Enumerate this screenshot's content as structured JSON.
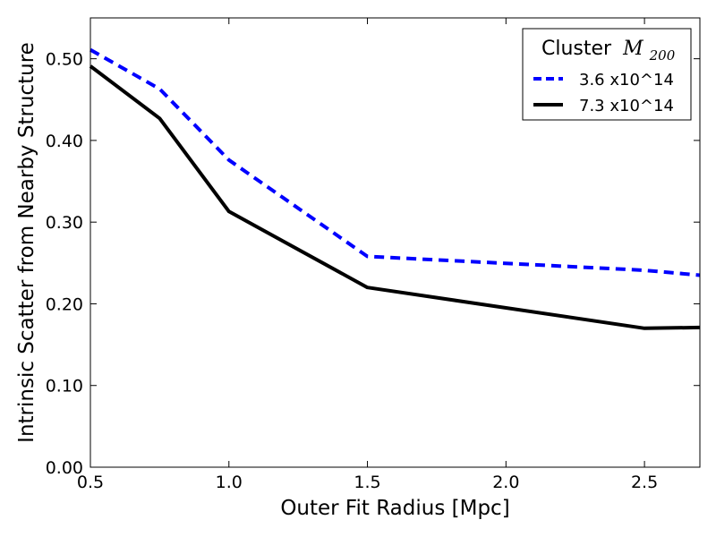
{
  "chart_data": {
    "type": "line",
    "xlabel": "Outer Fit Radius [Mpc]",
    "ylabel": "Intrinsic Scatter from Nearby Structure",
    "xlim": [
      0.5,
      2.7
    ],
    "ylim": [
      0.0,
      0.55
    ],
    "x_ticks": [
      0.5,
      1.0,
      1.5,
      2.0,
      2.5
    ],
    "x_tick_labels": [
      "0.5",
      "1.0",
      "1.5",
      "2.0",
      "2.5"
    ],
    "y_ticks": [
      0.0,
      0.1,
      0.2,
      0.3,
      0.4,
      0.5
    ],
    "y_tick_labels": [
      "0.00",
      "0.10",
      "0.20",
      "0.30",
      "0.40",
      "0.50"
    ],
    "grid": false,
    "legend": {
      "placement": "top-right",
      "title": "Cluster",
      "title_math": "M",
      "title_math_sub": "200"
    },
    "series": [
      {
        "name": "3.6 x10^14",
        "color": "#0000ff",
        "style": "dashed",
        "x": [
          0.5,
          0.75,
          1.0,
          1.5,
          2.5,
          2.7
        ],
        "y": [
          0.511,
          0.463,
          0.376,
          0.258,
          0.241,
          0.235
        ]
      },
      {
        "name": "7.3 x10^14",
        "color": "#000000",
        "style": "solid",
        "x": [
          0.5,
          0.75,
          1.0,
          1.5,
          2.5,
          2.7
        ],
        "y": [
          0.491,
          0.427,
          0.313,
          0.22,
          0.17,
          0.171
        ]
      }
    ]
  }
}
